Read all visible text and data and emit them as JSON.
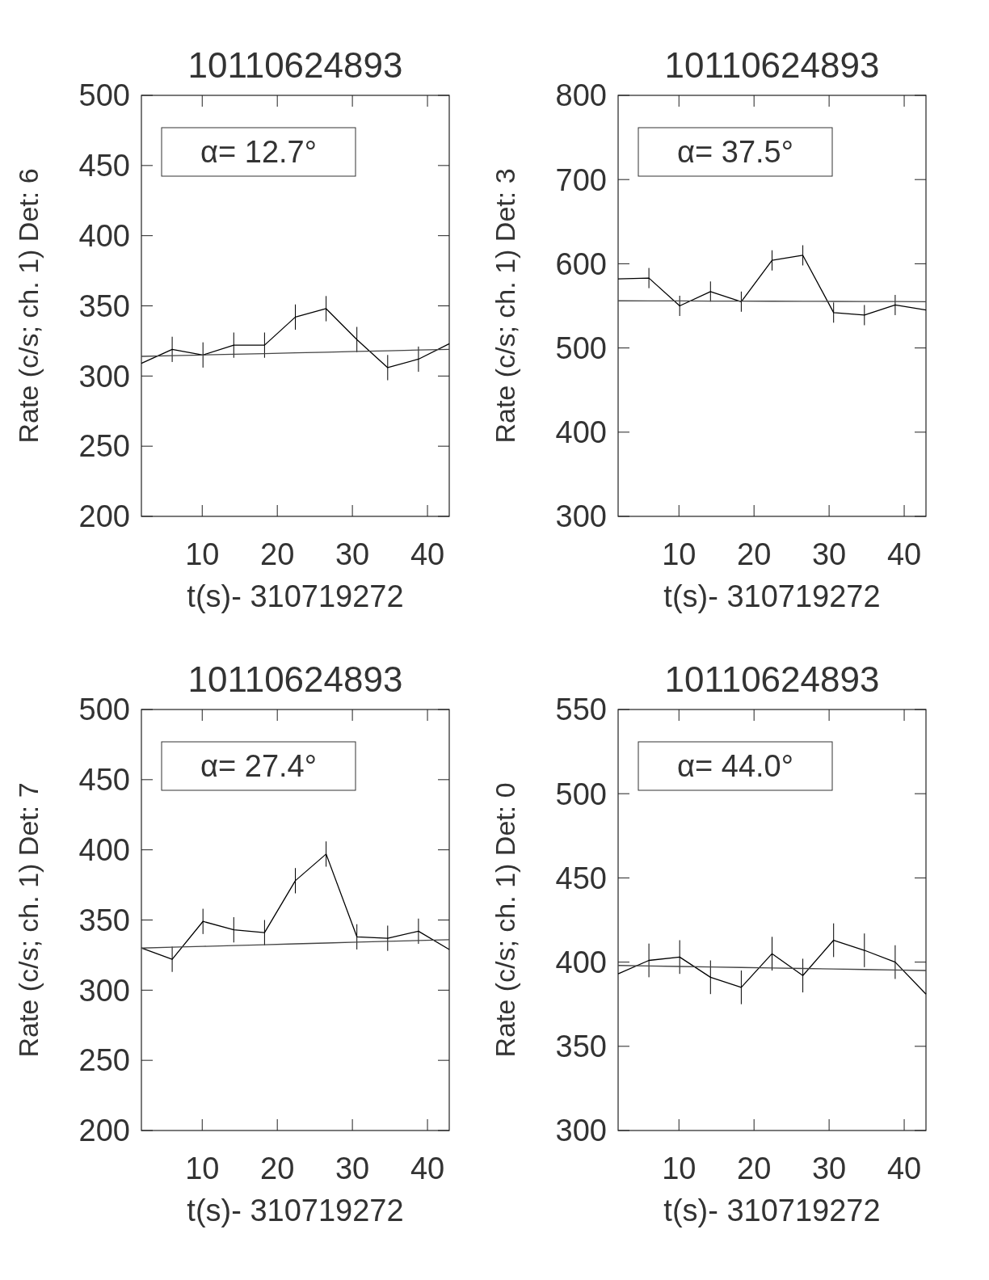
{
  "chart_data": [
    {
      "type": "line",
      "title": "10110624893",
      "xlabel": "t(s)- 310719272",
      "ylabel": "Rate (c/s; ch. 1) Det: 6",
      "x": [
        1.9,
        6.0,
        10.1,
        14.2,
        18.3,
        22.4,
        26.5,
        30.6,
        34.7,
        38.8,
        42.9
      ],
      "xlim": [
        1.9,
        42.9
      ],
      "xticks": [
        10,
        20,
        30,
        40
      ],
      "ylim": [
        200,
        500
      ],
      "yticks": [
        200,
        250,
        300,
        350,
        400,
        450,
        500
      ],
      "annotations": [
        "α= 12.7°"
      ],
      "series": [
        {
          "color": "#000000",
          "values": [
            309,
            319,
            315,
            322,
            322,
            342,
            348,
            326,
            306,
            312,
            323
          ],
          "errors": [
            null,
            9,
            9,
            9,
            9,
            9,
            9,
            9,
            9,
            9,
            null
          ]
        },
        {
          "type": "line",
          "color": "#444444",
          "values": [
            314,
            314.5,
            315,
            315.5,
            316,
            316.5,
            317,
            317.5,
            318,
            318.5,
            319
          ]
        }
      ]
    },
    {
      "type": "line",
      "title": "10110624893",
      "xlabel": "t(s)- 310719272",
      "ylabel": "Rate (c/s; ch. 1) Det: 3",
      "x": [
        1.9,
        6.0,
        10.1,
        14.2,
        18.3,
        22.4,
        26.5,
        30.6,
        34.7,
        38.8,
        42.9
      ],
      "xlim": [
        1.9,
        42.9
      ],
      "xticks": [
        10,
        20,
        30,
        40
      ],
      "ylim": [
        300,
        800
      ],
      "yticks": [
        300,
        400,
        500,
        600,
        700,
        800
      ],
      "annotations": [
        "α= 37.5°"
      ],
      "series": [
        {
          "color": "#000000",
          "values": [
            582,
            583,
            550,
            567,
            555,
            604,
            610,
            542,
            539,
            551,
            545
          ],
          "errors": [
            null,
            12,
            12,
            12,
            12,
            12,
            12,
            12,
            12,
            12,
            null
          ]
        },
        {
          "type": "line",
          "color": "#444444",
          "values": [
            556,
            555.9,
            555.8,
            555.7,
            555.6,
            555.5,
            555.4,
            555.3,
            555.2,
            555.1,
            555
          ]
        }
      ]
    },
    {
      "type": "line",
      "title": "10110624893",
      "xlabel": "t(s)- 310719272",
      "ylabel": "Rate (c/s; ch. 1) Det: 7",
      "x": [
        1.9,
        6.0,
        10.1,
        14.2,
        18.3,
        22.4,
        26.5,
        30.6,
        34.7,
        38.8,
        42.9
      ],
      "xlim": [
        1.9,
        42.9
      ],
      "xticks": [
        10,
        20,
        30,
        40
      ],
      "ylim": [
        200,
        500
      ],
      "yticks": [
        200,
        250,
        300,
        350,
        400,
        450,
        500
      ],
      "annotations": [
        "α= 27.4°"
      ],
      "series": [
        {
          "color": "#000000",
          "values": [
            330,
            322,
            349,
            343,
            341,
            378,
            397,
            338,
            337,
            342,
            329
          ],
          "errors": [
            null,
            9,
            9,
            9,
            9,
            9,
            9,
            9,
            9,
            9,
            null
          ]
        },
        {
          "type": "line",
          "color": "#444444",
          "values": [
            330,
            330.6,
            331.2,
            331.8,
            332.4,
            333,
            333.6,
            334.2,
            334.8,
            335.4,
            336
          ]
        }
      ]
    },
    {
      "type": "line",
      "title": "10110624893",
      "xlabel": "t(s)- 310719272",
      "ylabel": "Rate (c/s; ch. 1) Det: 0",
      "x": [
        1.9,
        6.0,
        10.1,
        14.2,
        18.3,
        22.4,
        26.5,
        30.6,
        34.7,
        38.8,
        42.9
      ],
      "xlim": [
        1.9,
        42.9
      ],
      "xticks": [
        10,
        20,
        30,
        40
      ],
      "ylim": [
        300,
        550
      ],
      "yticks": [
        300,
        350,
        400,
        450,
        500,
        550
      ],
      "annotations": [
        "α= 44.0°"
      ],
      "series": [
        {
          "color": "#000000",
          "values": [
            393,
            401,
            403,
            391,
            385,
            405,
            392,
            413,
            407,
            400,
            381
          ],
          "errors": [
            null,
            10,
            10,
            10,
            10,
            10,
            10,
            10,
            10,
            10,
            null
          ]
        },
        {
          "type": "line",
          "color": "#444444",
          "values": [
            398,
            397.7,
            397.4,
            397.1,
            396.8,
            396.5,
            396.2,
            395.9,
            395.6,
            395.3,
            395
          ]
        }
      ]
    }
  ]
}
